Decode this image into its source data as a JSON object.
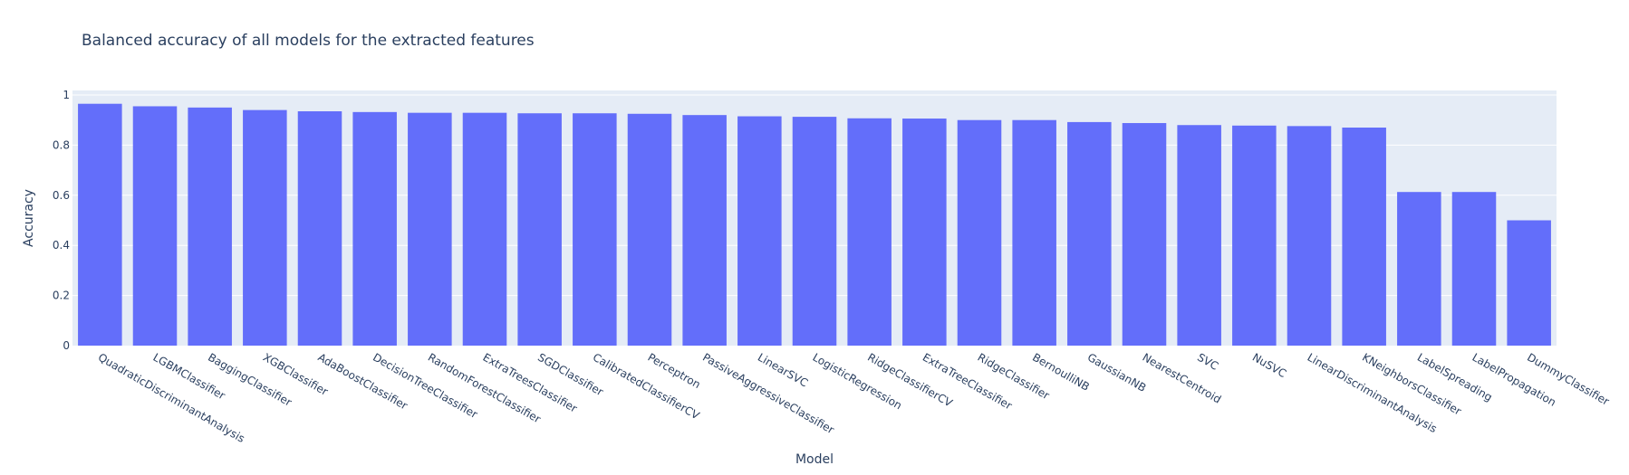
{
  "chart_data": {
    "type": "bar",
    "title": "Balanced accuracy of all models for the extracted features",
    "xlabel": "Model",
    "ylabel": "Accuracy",
    "ylim": [
      0,
      1
    ],
    "yticks": [
      0,
      0.2,
      0.4,
      0.6,
      0.8,
      1
    ],
    "ytick_labels": [
      "0",
      "0.2",
      "0.4",
      "0.6",
      "0.8",
      "1"
    ],
    "bar_color": "#636efa",
    "plot_bg": "#e5ecf6",
    "grid": true,
    "categories": [
      "QuadraticDiscriminantAnalysis",
      "LGBMClassifier",
      "BaggingClassifier",
      "XGBClassifier",
      "AdaBoostClassifier",
      "DecisionTreeClassifier",
      "RandomForestClassifier",
      "ExtraTreesClassifier",
      "SGDClassifier",
      "CalibratedClassifierCV",
      "Perceptron",
      "PassiveAggressiveClassifier",
      "LinearSVC",
      "LogisticRegression",
      "RidgeClassifierCV",
      "ExtraTreeClassifier",
      "RidgeClassifier",
      "BernoulliNB",
      "GaussianNB",
      "NearestCentroid",
      "SVC",
      "NuSVC",
      "LinearDiscriminantAnalysis",
      "KNeighborsClassifier",
      "LabelSpreading",
      "LabelPropagation",
      "DummyClassifier"
    ],
    "values": [
      0.965,
      0.955,
      0.95,
      0.94,
      0.935,
      0.932,
      0.929,
      0.929,
      0.927,
      0.927,
      0.925,
      0.92,
      0.915,
      0.913,
      0.907,
      0.906,
      0.9,
      0.9,
      0.892,
      0.888,
      0.88,
      0.878,
      0.876,
      0.87,
      0.613,
      0.613,
      0.5
    ]
  }
}
